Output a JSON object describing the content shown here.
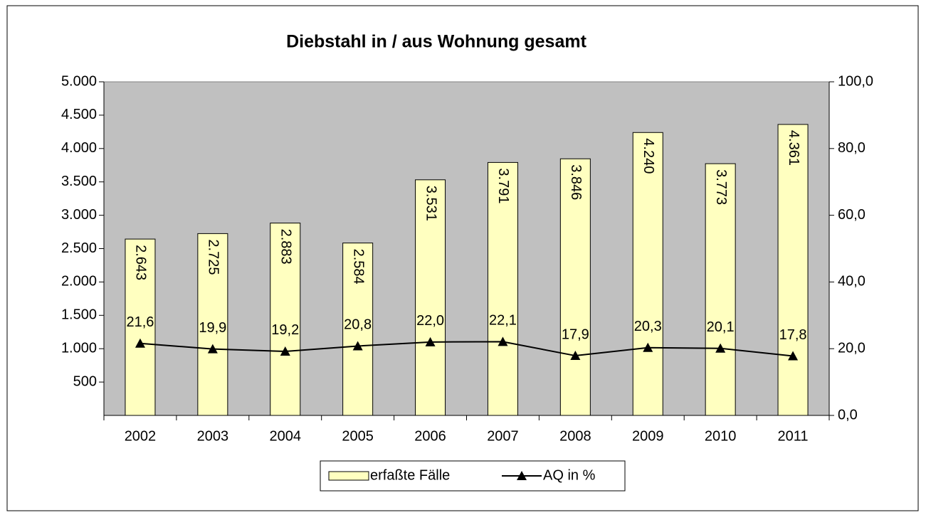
{
  "chart_data": {
    "type": "bar_line",
    "title": "Diebstahl in / aus Wohnung gesamt",
    "categories": [
      "2002",
      "2003",
      "2004",
      "2005",
      "2006",
      "2007",
      "2008",
      "2009",
      "2010",
      "2011"
    ],
    "series": [
      {
        "name": "erfaßte Fälle",
        "type": "bar",
        "color": "#ffffc0",
        "values": [
          2643,
          2725,
          2883,
          2584,
          3531,
          3791,
          3846,
          4240,
          3773,
          4361
        ],
        "value_labels": [
          "2.643",
          "2.725",
          "2.883",
          "2.584",
          "3.531",
          "3.791",
          "3.846",
          "4.240",
          "3.773",
          "4.361"
        ]
      },
      {
        "name": "AQ in %",
        "type": "line",
        "axis": "y2",
        "color": "#000000",
        "values": [
          21.6,
          19.9,
          19.2,
          20.8,
          22.0,
          22.1,
          17.9,
          20.3,
          20.1,
          17.8
        ],
        "value_labels": [
          "21,6",
          "19,9",
          "19,2",
          "20,8",
          "22,0",
          "22,1",
          "17,9",
          "20,3",
          "20,1",
          "17,8"
        ]
      }
    ],
    "ylim": [
      0,
      5000
    ],
    "yticks": [
      500,
      {
        "value": 1000,
        "label": "1.000"
      },
      {
        "value": 1500,
        "label": "1.500"
      },
      {
        "value": 2000,
        "label": "2.000"
      },
      {
        "value": 2500,
        "label": "2.500"
      },
      {
        "value": 3000,
        "label": "3.000"
      },
      {
        "value": 3500,
        "label": "3.500"
      },
      {
        "value": 4000,
        "label": "4.000"
      },
      {
        "value": 4500,
        "label": "4.500"
      },
      {
        "value": 5000,
        "label": "5.000"
      }
    ],
    "y2lim": [
      0,
      100
    ],
    "y2ticks": [
      {
        "value": 0,
        "label": "0,0"
      },
      {
        "value": 20,
        "label": "20,0"
      },
      {
        "value": 40,
        "label": "40,0"
      },
      {
        "value": 60,
        "label": "60,0"
      },
      {
        "value": 80,
        "label": "80,0"
      },
      {
        "value": 100,
        "label": "100,0"
      }
    ],
    "plot_background": "#c0c0c0",
    "legend": "bottom"
  }
}
